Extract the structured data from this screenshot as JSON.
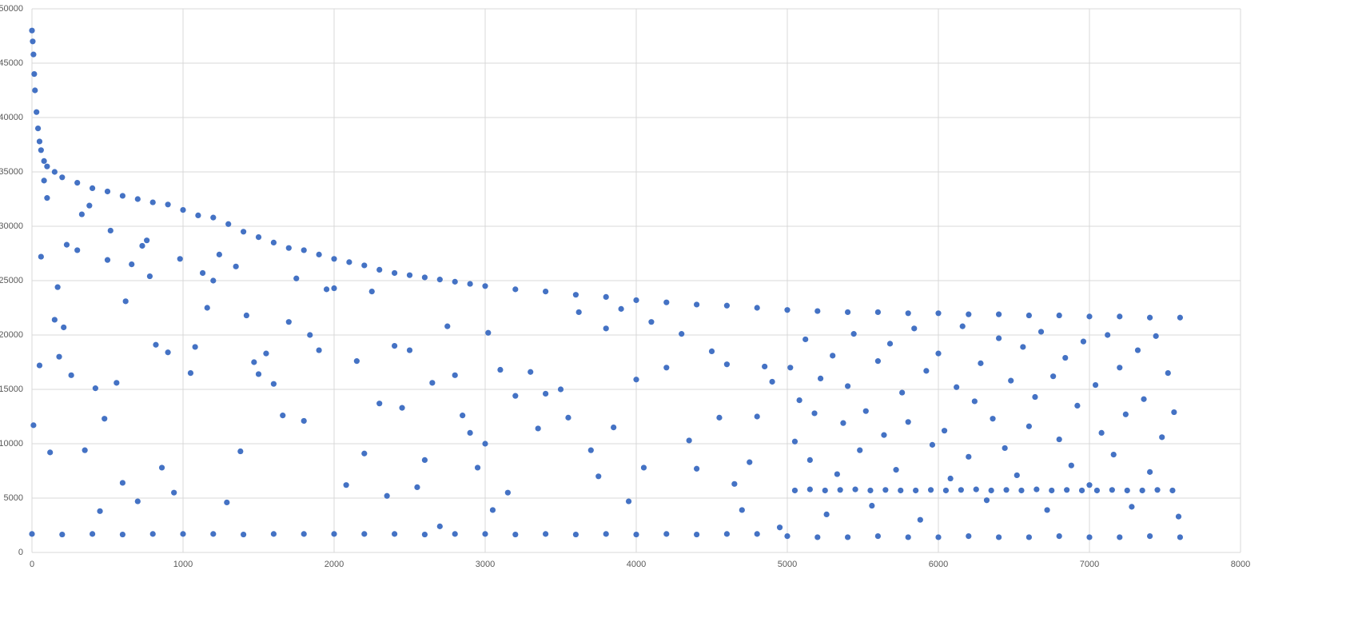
{
  "chart_data": {
    "type": "scatter",
    "color": "#4472c4",
    "grid": true,
    "xlim": [
      0,
      8000
    ],
    "xticks": [
      0,
      1000,
      2000,
      3000,
      4000,
      5000,
      6000,
      7000,
      8000
    ],
    "ylim": [
      0,
      50000
    ],
    "yticks": [
      0,
      5000,
      10000,
      15000,
      20000,
      25000,
      30000,
      35000,
      40000,
      45000,
      50000
    ],
    "series": [
      {
        "x": [
          0,
          5,
          10,
          15,
          20,
          30,
          40,
          50,
          60,
          80,
          100,
          150,
          200,
          300,
          400,
          500,
          600,
          700,
          800,
          900,
          1000,
          1100,
          1200,
          1300,
          1400,
          1500,
          1600,
          1700,
          1800,
          1900,
          2000,
          2100,
          2200,
          2300,
          2400,
          2500,
          2600,
          2700,
          2800,
          2900,
          3000,
          3200,
          3400,
          3600,
          3800,
          4000,
          4200,
          4400,
          4600,
          4800,
          5000,
          5200,
          5400,
          5600,
          5800,
          6000,
          6200,
          6400,
          6600,
          6800,
          7000,
          7200,
          7400,
          7600
        ],
        "values": [
          48000,
          47000,
          45800,
          44000,
          42500,
          40500,
          39000,
          37800,
          37000,
          36000,
          35500,
          35000,
          34500,
          34000,
          33500,
          33200,
          32800,
          32500,
          32200,
          32000,
          31500,
          31000,
          30800,
          30200,
          29500,
          29000,
          28500,
          28000,
          27800,
          27400,
          27000,
          26700,
          26400,
          26000,
          25700,
          25500,
          25300,
          25100,
          24900,
          24700,
          24500,
          24200,
          24000,
          23700,
          23500,
          23200,
          23000,
          22800,
          22700,
          22500,
          22300,
          22200,
          22100,
          22100,
          22000,
          22000,
          21900,
          21900,
          21800,
          21800,
          21700,
          21700,
          21600,
          21600
        ]
      },
      {
        "x": [
          0,
          200,
          400,
          600,
          800,
          1000,
          1200,
          1400,
          1600,
          1800,
          2000,
          2200,
          2400,
          2600,
          2800,
          3000,
          3200,
          3400,
          3600,
          3800,
          4000,
          4200,
          4400,
          4600,
          4800
        ],
        "values": [
          1700,
          1650,
          1700,
          1650,
          1700,
          1700,
          1700,
          1650,
          1700,
          1700,
          1700,
          1700,
          1700,
          1650,
          1700,
          1700,
          1650,
          1700,
          1650,
          1700,
          1650,
          1700,
          1650,
          1700,
          1700
        ]
      },
      {
        "x": [
          5050,
          5150,
          5250,
          5350,
          5450,
          5550,
          5650,
          5750,
          5850,
          5950,
          6050,
          6150,
          6250,
          6350,
          6450,
          6550,
          6650,
          6750,
          6850,
          6950,
          7050,
          7150,
          7250,
          7350,
          7450,
          7550
        ],
        "values": [
          5700,
          5800,
          5700,
          5750,
          5800,
          5700,
          5750,
          5700,
          5700,
          5750,
          5700,
          5750,
          5800,
          5700,
          5750,
          5700,
          5800,
          5700,
          5750,
          5700,
          5700,
          5750,
          5700,
          5700,
          5750,
          5700
        ]
      },
      {
        "x": [
          5000,
          5200,
          5400,
          5600,
          5800,
          6000,
          6200,
          6400,
          6600,
          6800,
          7000,
          7200,
          7400,
          7600
        ],
        "values": [
          1500,
          1400,
          1400,
          1500,
          1400,
          1400,
          1500,
          1400,
          1400,
          1500,
          1400,
          1400,
          1500,
          1400
        ]
      },
      {
        "x": [
          10,
          50,
          60,
          80,
          100,
          120,
          150,
          170,
          180,
          210,
          230,
          260,
          300,
          330,
          350,
          380,
          420,
          450,
          480,
          500,
          520,
          560,
          600,
          620,
          660,
          700,
          730,
          760,
          780,
          820,
          860,
          900,
          940,
          980,
          1050,
          1080,
          1130,
          1160,
          1200,
          1240,
          1290,
          1350,
          1380,
          1420,
          1470,
          1500,
          1550,
          1600,
          1660,
          1700,
          1750,
          1800,
          1840,
          1900,
          1950,
          2000,
          2080,
          2150,
          2200,
          2250,
          2300,
          2350,
          2400,
          2450,
          2500,
          2550,
          2600,
          2650,
          2700,
          2750,
          2800,
          2850,
          2900,
          2950,
          3000,
          3020,
          3050,
          3100,
          3150,
          3200,
          3300,
          3350,
          3400,
          3500,
          3550,
          3620,
          3700,
          3750,
          3800,
          3850,
          3900,
          3950,
          4000,
          4050,
          4100,
          4200,
          4300,
          4350,
          4400,
          4500,
          4550,
          4600,
          4650,
          4700,
          4750,
          4800,
          4850,
          4900,
          4950
        ],
        "values": [
          11700,
          17200,
          27200,
          34200,
          32600,
          9200,
          21400,
          24400,
          18000,
          20700,
          28300,
          16300,
          27800,
          31100,
          9400,
          31900,
          15100,
          3800,
          12300,
          26900,
          29600,
          15600,
          6400,
          23100,
          26500,
          4700,
          28200,
          28700,
          25400,
          19100,
          7800,
          18400,
          5500,
          27000,
          16500,
          18900,
          25700,
          22500,
          25000,
          27400,
          4600,
          26300,
          9300,
          21800,
          17500,
          16400,
          18300,
          15500,
          12600,
          21200,
          25200,
          12100,
          20000,
          18600,
          24200,
          24300,
          6200,
          17600,
          9100,
          24000,
          13700,
          5200,
          19000,
          13300,
          18600,
          6000,
          8500,
          15600,
          2400,
          20800,
          16300,
          12600,
          11000,
          7800,
          10000,
          20200,
          3900,
          16800,
          5500,
          14400,
          16600,
          11400,
          14600,
          15000,
          12400,
          22100,
          9400,
          7000,
          20600,
          11500,
          22400,
          4700,
          15900,
          7800,
          21200,
          17000,
          20100,
          10300,
          7700,
          18500,
          12400,
          17300,
          6300,
          3900,
          8300,
          12500,
          17100,
          15700,
          2300
        ]
      },
      {
        "x": [
          5020,
          5050,
          5080,
          5120,
          5150,
          5180,
          5220,
          5260,
          5300,
          5330,
          5370,
          5400,
          5440,
          5480,
          5520,
          5560,
          5600,
          5640,
          5680,
          5720,
          5760,
          5800,
          5840,
          5880,
          5920,
          5960,
          6000,
          6040,
          6080,
          6120,
          6160,
          6200,
          6240,
          6280,
          6320,
          6360,
          6400,
          6440,
          6480,
          6520,
          6560,
          6600,
          6640,
          6680,
          6720,
          6760,
          6800,
          6840,
          6880,
          6920,
          6960,
          7000,
          7040,
          7080,
          7120,
          7160,
          7200,
          7240,
          7280,
          7320,
          7360,
          7400,
          7440,
          7480,
          7520,
          7560,
          7590
        ],
        "values": [
          17000,
          10200,
          14000,
          19600,
          8500,
          12800,
          16000,
          3500,
          18100,
          7200,
          11900,
          15300,
          20100,
          9400,
          13000,
          4300,
          17600,
          10800,
          19200,
          7600,
          14700,
          12000,
          20600,
          3000,
          16700,
          9900,
          18300,
          11200,
          6800,
          15200,
          20800,
          8800,
          13900,
          17400,
          4800,
          12300,
          19700,
          9600,
          15800,
          7100,
          18900,
          11600,
          14300,
          20300,
          3900,
          16200,
          10400,
          17900,
          8000,
          13500,
          19400,
          6200,
          15400,
          11000,
          20000,
          9000,
          17000,
          12700,
          4200,
          18600,
          14100,
          7400,
          19900,
          10600,
          16500,
          12900,
          3300
        ]
      }
    ]
  }
}
